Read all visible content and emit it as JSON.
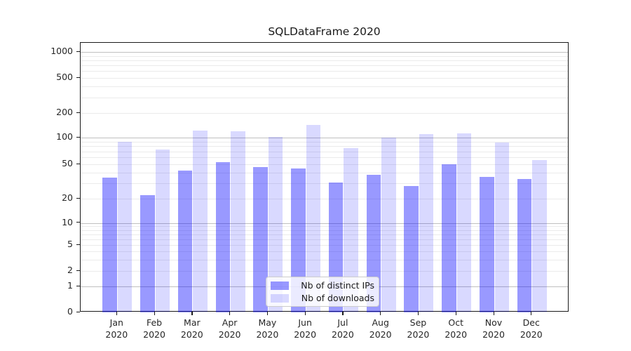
{
  "title": "SQLDataFrame 2020",
  "chart_data": {
    "type": "bar",
    "title": "SQLDataFrame 2020",
    "categories": [
      "Jan 2020",
      "Feb 2020",
      "Mar 2020",
      "Apr 2020",
      "May 2020",
      "Jun 2020",
      "Jul 2020",
      "Aug 2020",
      "Sep 2020",
      "Oct 2020",
      "Nov 2020",
      "Dec 2020"
    ],
    "series": [
      {
        "name": "Nb of distinct IPs",
        "base_color": "#0000ff",
        "alpha": 0.4,
        "swatch_hex": "#9999ff",
        "values": [
          35,
          22,
          42,
          53,
          46,
          45,
          31,
          38,
          28,
          50,
          36,
          34
        ]
      },
      {
        "name": "Nb of downloads",
        "base_color": "#0000ff",
        "alpha": 0.15,
        "swatch_hex": "#d9d9ff",
        "values": [
          90,
          74,
          122,
          119,
          102,
          143,
          76,
          100,
          111,
          113,
          88,
          56
        ]
      }
    ],
    "yscale": "symlog",
    "ylim": [
      0,
      1300
    ],
    "yticks": [
      0,
      1,
      2,
      5,
      10,
      20,
      50,
      100,
      200,
      500,
      1000
    ],
    "grid": "on",
    "legend_position": "lower-center-inside",
    "colors": {
      "major_grid": "#c0c0c0",
      "minor_grid": "#ebebeb",
      "spine": "#1a1a1a",
      "text": "#262626"
    }
  }
}
